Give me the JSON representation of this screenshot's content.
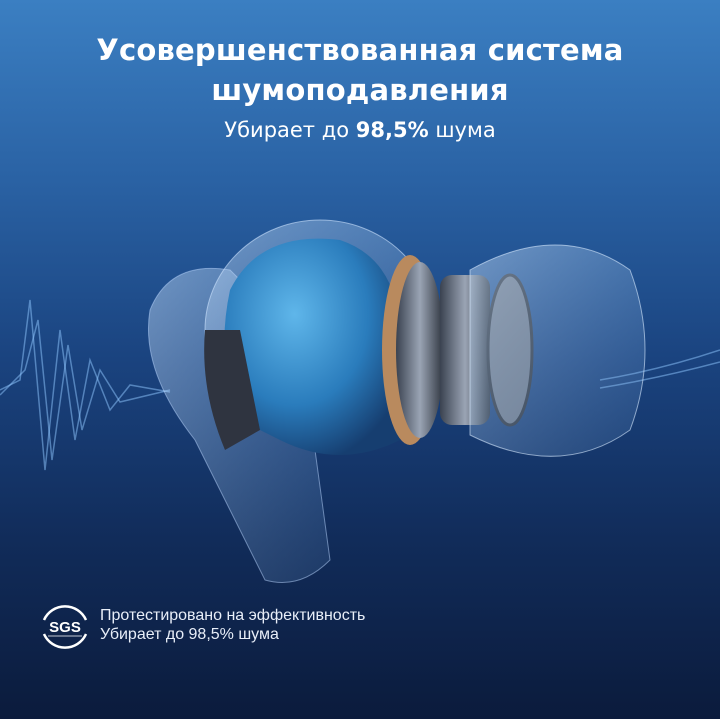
{
  "headline": {
    "line1": "Усовершенствованная система",
    "line2": "шумоподавления"
  },
  "subtitle": {
    "prefix": "Убирает до",
    "highlight": "98,5%",
    "suffix": "шума"
  },
  "certification": {
    "logo_text": "SGS",
    "line1": "Протестировано на эффективность",
    "line2": "Убирает до 98,5% шума"
  },
  "colors": {
    "background_top": "#3b7fc2",
    "background_bottom": "#0b1b3c",
    "earbud_accent": "#3a9ad8"
  }
}
